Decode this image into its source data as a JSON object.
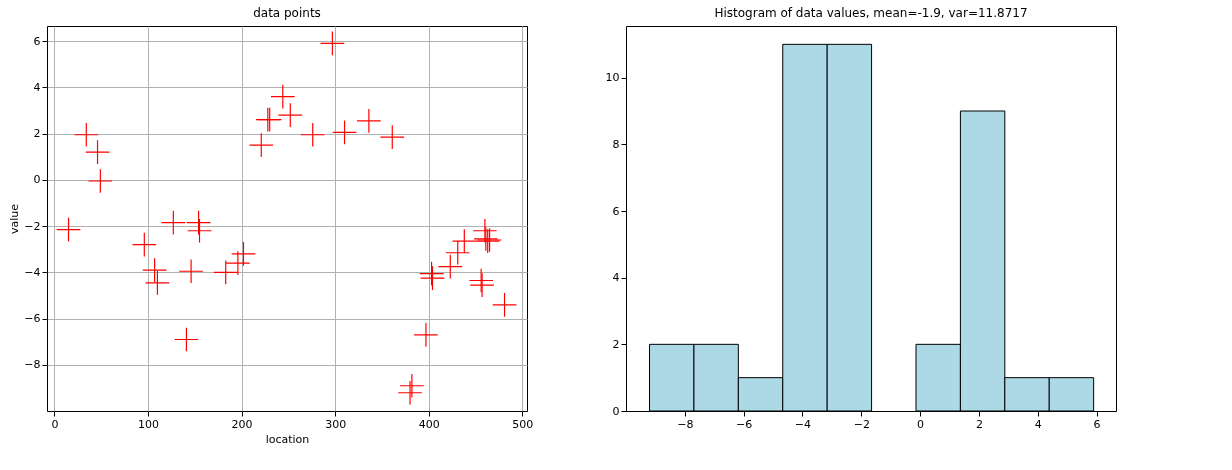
{
  "chart_data": [
    {
      "type": "scatter",
      "title": "data points",
      "xlabel": "location",
      "ylabel": "value",
      "color": "#ff0000",
      "marker": "cross",
      "grid": true,
      "x": [
        15,
        34,
        46,
        49,
        96,
        107,
        110,
        127,
        141,
        146,
        154,
        155,
        183,
        196,
        202,
        221,
        228,
        230,
        244,
        252,
        276,
        297,
        310,
        336,
        361,
        380,
        382,
        397,
        403,
        404,
        423,
        431,
        438,
        456,
        457,
        460,
        461,
        463,
        465,
        481
      ],
      "values": [
        -2.15,
        1.95,
        1.2,
        -0.05,
        -2.8,
        -3.9,
        -4.45,
        -1.85,
        -6.9,
        -3.95,
        -1.85,
        -2.2,
        -4.0,
        -3.6,
        -3.2,
        1.5,
        2.6,
        2.6,
        3.6,
        2.8,
        1.95,
        5.9,
        2.05,
        2.55,
        1.85,
        -9.2,
        -8.9,
        -6.7,
        -4.05,
        -4.25,
        -3.75,
        -3.15,
        -2.65,
        -4.35,
        -4.55,
        -2.2,
        -2.55,
        -2.65,
        -2.6,
        -5.4
      ],
      "xlim": [
        -8,
        505
      ],
      "xticks": [
        0,
        100,
        200,
        300,
        400,
        500
      ],
      "ylim": [
        -9.99,
        6.65
      ],
      "yticks": [
        {
          "value": -8,
          "label": "−8"
        },
        {
          "value": -6,
          "label": "−6"
        },
        {
          "value": -4,
          "label": "−4"
        },
        {
          "value": -2,
          "label": "−2"
        },
        0,
        2,
        4,
        6
      ]
    },
    {
      "type": "histogram",
      "title": "Histogram of data values, mean=-1.9, var=11.8717",
      "color": "#add8e6",
      "grid": false,
      "bins": [
        -9.2,
        -7.69,
        -6.18,
        -4.67,
        -3.16,
        -1.65,
        -0.14,
        1.37,
        2.88,
        4.39,
        5.9
      ],
      "values": [
        2,
        2,
        1,
        11,
        11,
        0,
        2,
        9,
        1,
        1
      ],
      "xlim": [
        -10.0,
        6.66
      ],
      "xticks": [
        {
          "value": -8,
          "label": "−8"
        },
        {
          "value": -6,
          "label": "−6"
        },
        {
          "value": -4,
          "label": "−4"
        },
        {
          "value": -2,
          "label": "−2"
        },
        0,
        2,
        4,
        6
      ],
      "ylim": [
        0,
        11.55
      ],
      "yticks": [
        0,
        2,
        4,
        6,
        8,
        10
      ]
    }
  ]
}
